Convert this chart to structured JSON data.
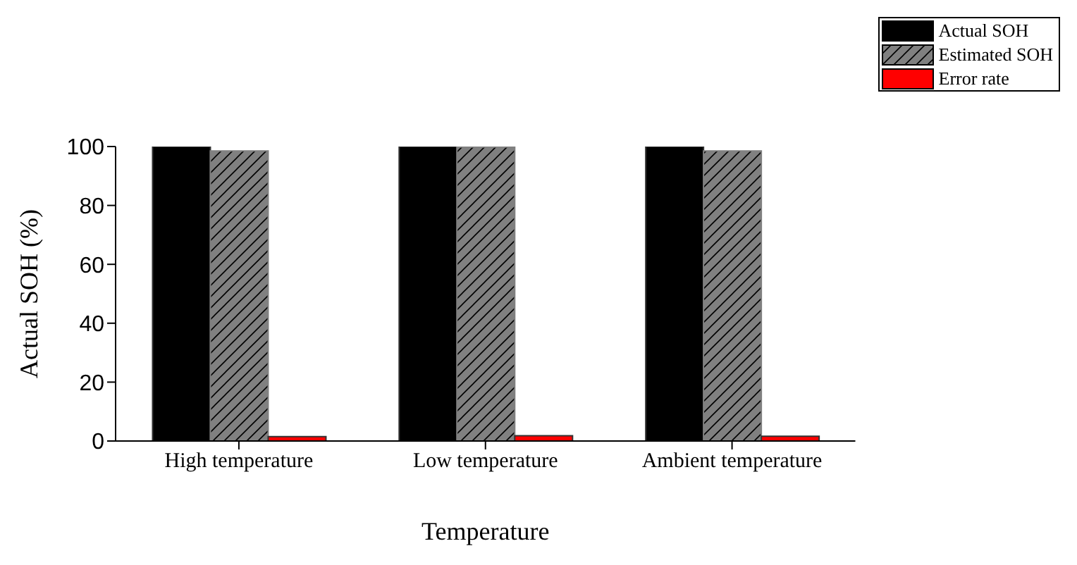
{
  "chart_data": {
    "type": "bar",
    "xlabel": "Temperature",
    "ylabel": "Actual SOH (%)",
    "categories": [
      "High temperature",
      "Low temperature",
      "Ambient temperature"
    ],
    "series": [
      {
        "name": "Actual SOH",
        "color": "#000000",
        "values": [
          100,
          100,
          100
        ]
      },
      {
        "name": "Estimated SOH",
        "color": "#808080",
        "values": [
          98.5,
          99.8,
          98.5
        ]
      },
      {
        "name": "Error rate",
        "color": "#ff0000",
        "values": [
          1.5,
          1.8,
          1.6
        ]
      }
    ],
    "ylim": [
      0,
      100
    ],
    "yticks": [
      0,
      20,
      40,
      60,
      80,
      100
    ],
    "grid": false,
    "legend": "top right"
  }
}
